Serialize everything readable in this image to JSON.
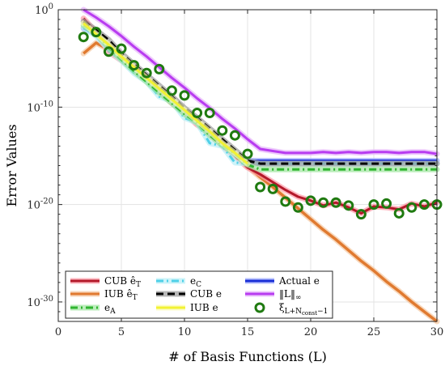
{
  "chart_data": {
    "type": "line",
    "xlabel": "# of Basis Functions (L)",
    "ylabel": "Error Values",
    "xlim": [
      0,
      30
    ],
    "ylim_log10": [
      -32,
      0
    ],
    "xscale": "linear",
    "yscale": "log",
    "grid": true,
    "legend_position": "lower-left",
    "x_ticks": [
      0,
      5,
      10,
      15,
      20,
      25,
      30
    ],
    "y_ticks": [
      {
        "exp": 0,
        "label": "10^0"
      },
      {
        "exp": -10,
        "label": "10^-10"
      },
      {
        "exp": -20,
        "label": "10^-20"
      },
      {
        "exp": -30,
        "label": "10^-30"
      }
    ],
    "series": [
      {
        "name": "CUB ê_T",
        "color": "#b3192a",
        "halo": "#ff9aa6",
        "style": "solid",
        "x": [
          2,
          3,
          4,
          5,
          6,
          7,
          8,
          9,
          10,
          11,
          12,
          13,
          14,
          15,
          16,
          17,
          18,
          19,
          20,
          21,
          22,
          23,
          24,
          25,
          26,
          27,
          28,
          29,
          30
        ],
        "log10y": [
          -0.9,
          -2.3,
          -4.3,
          -5.2,
          -6.0,
          -7.1,
          -8.4,
          -9.6,
          -10.6,
          -11.8,
          -12.7,
          -14.0,
          -15.0,
          -16.2,
          -16.9,
          -17.7,
          -18.5,
          -19.2,
          -19.6,
          -20.1,
          -19.8,
          -20.3,
          -20.9,
          -20.2,
          -20.3,
          -20.5,
          -19.9,
          -20.2,
          -19.8
        ]
      },
      {
        "name": "IUB ê_T",
        "color": "#e07a30",
        "halo": "#f5c7a0",
        "style": "solid",
        "x": [
          2,
          3,
          4,
          5,
          6,
          7,
          8,
          9,
          10,
          11,
          12,
          13,
          14,
          15,
          16,
          17,
          18,
          19,
          20,
          21,
          22,
          23,
          24,
          25,
          26,
          27,
          28,
          29,
          30
        ],
        "log10y": [
          -4.5,
          -3.4,
          -4.1,
          -5.1,
          -6.1,
          -7.1,
          -8.3,
          -9.5,
          -10.6,
          -11.7,
          -12.7,
          -13.9,
          -15.0,
          -16.1,
          -17.2,
          -18.2,
          -19.3,
          -20.4,
          -21.5,
          -22.6,
          -23.6,
          -24.7,
          -25.8,
          -26.8,
          -27.9,
          -28.9,
          -30.0,
          -31.0,
          -32.0
        ]
      },
      {
        "name": "e_A",
        "color": "#2fb52f",
        "halo": "#9fe69f",
        "style": "dashdot",
        "x": [
          2,
          3,
          4,
          5,
          6,
          7,
          8,
          9,
          10,
          11,
          12,
          13,
          14,
          15,
          16,
          17,
          18,
          19,
          20,
          21,
          22,
          23,
          24,
          25,
          26,
          27,
          28,
          29,
          30
        ],
        "log10y": [
          -1.6,
          -2.4,
          -3.9,
          -5.1,
          -6.3,
          -7.4,
          -8.5,
          -9.6,
          -10.7,
          -11.6,
          -12.9,
          -13.9,
          -14.8,
          -15.9,
          -16.4,
          -16.4,
          -16.4,
          -16.4,
          -16.4,
          -16.4,
          -16.4,
          -16.4,
          -16.4,
          -16.4,
          -16.4,
          -16.4,
          -16.4,
          -16.4,
          -16.4
        ]
      },
      {
        "name": "e_C",
        "color": "#4fd0e8",
        "halo": "#b9eef7",
        "style": "dashdot",
        "x": [
          2,
          3,
          4,
          5,
          6,
          7,
          8,
          9,
          10,
          11,
          12,
          13,
          14,
          15,
          16,
          17,
          18,
          19,
          20,
          21,
          22,
          23,
          24,
          25,
          26,
          27,
          28,
          29,
          30
        ],
        "log10y": [
          -1.8,
          -2.7,
          -4.1,
          -5.2,
          -6.5,
          -7.4,
          -8.9,
          -9.4,
          -11.1,
          -11.6,
          -13.7,
          -14.0,
          -15.7,
          -15.8,
          -15.8,
          -15.8,
          -15.8,
          -15.8,
          -15.8,
          -15.8,
          -15.8,
          -15.8,
          -15.8,
          -15.8,
          -15.8,
          -15.8,
          -15.8,
          -15.8,
          -15.8
        ]
      },
      {
        "name": "CUB e",
        "color": "#000000",
        "halo": "#9a9a9a",
        "style": "dashed",
        "x": [
          2,
          3,
          4,
          5,
          6,
          7,
          8,
          9,
          10,
          11,
          12,
          13,
          14,
          15,
          16,
          17,
          18,
          19,
          20,
          21,
          22,
          23,
          24,
          25,
          26,
          27,
          28,
          29,
          30
        ],
        "log10y": [
          -1.2,
          -2.1,
          -3.1,
          -4.5,
          -5.6,
          -6.7,
          -7.8,
          -8.9,
          -10.1,
          -11.1,
          -12.2,
          -13.3,
          -14.4,
          -15.5,
          -15.8,
          -15.8,
          -15.8,
          -15.8,
          -15.8,
          -15.8,
          -15.8,
          -15.8,
          -15.8,
          -15.8,
          -15.8,
          -15.8,
          -15.8,
          -15.8,
          -15.8
        ]
      },
      {
        "name": "IUB e",
        "color": "#f2f233",
        "halo": "#fbfbb0",
        "style": "solid",
        "x": [
          2,
          3,
          4,
          5,
          6,
          7,
          8,
          9,
          10,
          11,
          12,
          13,
          14,
          15
        ],
        "log10y": [
          -1.4,
          -2.5,
          -3.6,
          -4.8,
          -5.9,
          -7.0,
          -8.1,
          -9.2,
          -10.3,
          -11.4,
          -12.5,
          -13.7,
          -14.7,
          -15.8
        ]
      },
      {
        "name": "Actual e",
        "color": "#1a2fd6",
        "halo": "#9aa6ff",
        "style": "solid",
        "x": [
          2,
          3,
          4,
          5,
          6,
          7,
          8,
          9,
          10,
          11,
          12,
          13,
          14,
          15,
          16,
          17,
          18,
          19,
          20,
          21,
          22,
          23,
          24,
          25,
          26,
          27,
          28,
          29,
          30
        ],
        "log10y": [
          -1.9,
          -2.5,
          -3.9,
          -5.0,
          -6.1,
          -7.2,
          -8.3,
          -9.4,
          -10.5,
          -11.6,
          -12.7,
          -13.8,
          -14.8,
          -15.5,
          -15.5,
          -15.5,
          -15.5,
          -15.5,
          -15.5,
          -15.5,
          -15.5,
          -15.5,
          -15.5,
          -15.5,
          -15.5,
          -15.5,
          -15.5,
          -15.5,
          -15.5
        ]
      },
      {
        "name": "‖L‖∞",
        "color": "#b83cf0",
        "halo": "#e6b2fb",
        "style": "solid",
        "x": [
          2,
          3,
          4,
          5,
          6,
          7,
          8,
          9,
          10,
          11,
          12,
          13,
          14,
          15,
          16,
          17,
          18,
          19,
          20,
          21,
          22,
          23,
          24,
          25,
          26,
          27,
          28,
          29,
          30
        ],
        "log10y": [
          0.0,
          -0.8,
          -1.7,
          -2.7,
          -3.8,
          -4.8,
          -5.9,
          -7.0,
          -8.0,
          -9.1,
          -10.1,
          -11.2,
          -12.2,
          -13.3,
          -14.3,
          -14.5,
          -14.7,
          -14.7,
          -14.7,
          -14.6,
          -14.7,
          -14.6,
          -14.7,
          -14.6,
          -14.6,
          -14.7,
          -14.6,
          -14.6,
          -14.8
        ]
      },
      {
        "name": "ξ_{L+N_const−1}",
        "color": "#1f7a10",
        "style": "markers",
        "x": [
          2,
          3,
          4,
          5,
          6,
          7,
          8,
          9,
          10,
          11,
          12,
          13,
          14,
          15,
          16,
          17,
          18,
          19,
          20,
          21,
          22,
          23,
          24,
          25,
          26,
          27,
          28,
          29,
          30
        ],
        "log10y": [
          -2.8,
          -2.3,
          -4.3,
          -4.0,
          -5.7,
          -6.5,
          -6.1,
          -8.3,
          -8.8,
          -10.6,
          -10.6,
          -12.4,
          -12.9,
          -14.8,
          -18.2,
          -18.4,
          -19.7,
          -20.3,
          -19.6,
          -19.8,
          -19.8,
          -20.1,
          -21.0,
          -20.0,
          -19.9,
          -20.9,
          -20.3,
          -20.0,
          -20.0
        ]
      }
    ],
    "legend": {
      "entries": [
        {
          "label": "CUB ê",
          "sub": "T",
          "series": 0
        },
        {
          "label": "IUB ê",
          "sub": "T",
          "series": 1
        },
        {
          "label": "e",
          "sub": "A",
          "series": 2
        },
        {
          "label": "e",
          "sub": "C",
          "series": 3
        },
        {
          "label": "CUB e",
          "sub": "",
          "series": 4
        },
        {
          "label": "IUB e",
          "sub": "",
          "series": 5
        },
        {
          "label": "Actual e",
          "sub": "",
          "series": 6
        },
        {
          "label": "‖L‖",
          "sub": "∞",
          "series": 7
        },
        {
          "label": "ξ",
          "sub": "L+N",
          "sub2": "const",
          "sub3": "−1",
          "series": 8
        }
      ]
    }
  }
}
